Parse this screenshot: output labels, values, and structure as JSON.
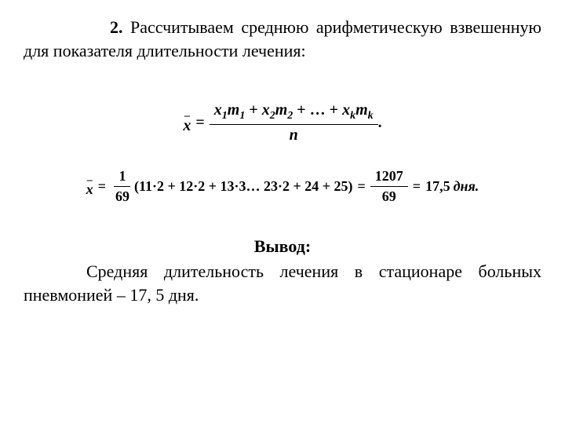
{
  "text": {
    "para1_lead": "2.",
    "para1_rest": " Рассчитываем среднюю арифметическую взвешенную для показателя длительности лечения:",
    "conclusion_label": "Вывод:",
    "conclusion_body": "Средняя длительность лечения в стационаре больных пневмонией – 17, 5 дня."
  },
  "formula1": {
    "numerator_terms": [
      "x",
      "1",
      "m",
      "1",
      " + ",
      "x",
      "2",
      "m",
      "2",
      " + … + ",
      "x",
      "k",
      "m",
      "k"
    ],
    "denominator": "n",
    "trailing": "."
  },
  "formula2": {
    "frac1_num": "1",
    "frac1_den": "69",
    "paren_content": "(11·2 + 12·2 + 13·3… 23·2 + 24 + 25)",
    "frac2_num": "1207",
    "frac2_den": "69",
    "result": "17,5",
    "unit": "дня.",
    "eq": "="
  },
  "style": {
    "bg": "#ffffff",
    "text_color": "#000000",
    "body_fontsize": 22,
    "formula_fontsize": 20,
    "formula2_fontsize": 18
  }
}
